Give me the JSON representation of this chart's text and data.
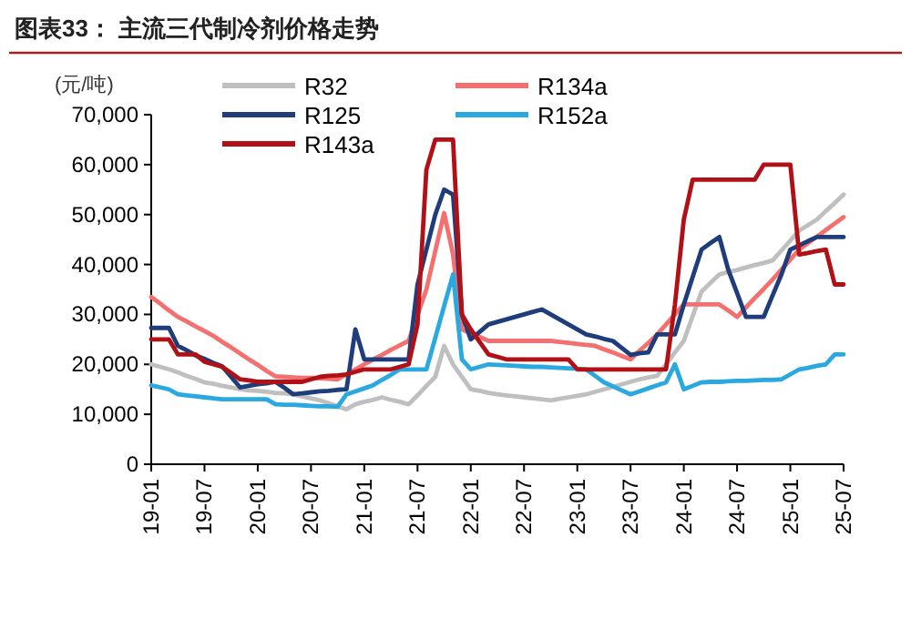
{
  "chart_data": {
    "type": "line",
    "title": "图表33：  主流三代制冷剂价格走势",
    "ylabel": "(元/吨)",
    "categories": [
      "19-01",
      null,
      null,
      null,
      null,
      null,
      "19-07",
      null,
      null,
      null,
      null,
      null,
      "20-01",
      null,
      null,
      null,
      null,
      null,
      "20-07",
      null,
      null,
      null,
      null,
      null,
      "21-01",
      null,
      null,
      null,
      null,
      null,
      "21-07",
      null,
      null,
      null,
      null,
      null,
      "22-01",
      null,
      null,
      null,
      null,
      null,
      "22-07",
      null,
      null,
      null,
      null,
      null,
      "23-01",
      null,
      null,
      null,
      null,
      null,
      "23-07",
      null,
      null,
      null,
      null,
      null,
      "24-01",
      null,
      null,
      null,
      null,
      null,
      "24-07",
      null,
      null,
      null,
      null,
      null,
      "25-01",
      null,
      null,
      null,
      null,
      null,
      "25-07"
    ],
    "ylim": [
      0,
      70000
    ],
    "yticks": [
      {
        "value": 0,
        "label": "0"
      },
      {
        "value": 10000,
        "label": "10,000"
      },
      {
        "value": 20000,
        "label": "20,000"
      },
      {
        "value": 30000,
        "label": "30,000"
      },
      {
        "value": 40000,
        "label": "40,000"
      },
      {
        "value": 50000,
        "label": "50,000"
      },
      {
        "value": 60000,
        "label": "60,000"
      },
      {
        "value": 70000,
        "label": "70,000"
      }
    ],
    "grid": false,
    "legend": "top",
    "marker": "none",
    "line_style": "solid",
    "series": [
      {
        "name": "R32",
        "color": "#bfbfbf",
        "values": [
          20000,
          19500,
          19000,
          18400,
          17700,
          17100,
          16400,
          16100,
          15700,
          15400,
          15000,
          14800,
          14700,
          14500,
          14300,
          14200,
          14000,
          13600,
          13200,
          12800,
          12200,
          11600,
          11000,
          12000,
          12500,
          12900,
          13400,
          12900,
          12500,
          12000,
          13800,
          15700,
          17500,
          23700,
          20000,
          17500,
          15000,
          14700,
          14300,
          14000,
          13800,
          13600,
          13400,
          13200,
          13000,
          12800,
          13100,
          13400,
          13700,
          14000,
          14500,
          15000,
          15500,
          16000,
          16500,
          17000,
          17400,
          17700,
          20000,
          22400,
          24700,
          29700,
          34600,
          36300,
          38000,
          38500,
          38900,
          39400,
          39900,
          40300,
          40800,
          42800,
          44800,
          46800,
          47900,
          49000,
          50700,
          52300,
          54000
        ]
      },
      {
        "name": "R134a",
        "color": "#f4706f",
        "values": [
          33500,
          32200,
          30800,
          29500,
          28600,
          27600,
          26700,
          25700,
          24500,
          23400,
          22200,
          21000,
          19900,
          18700,
          17600,
          17500,
          17400,
          17300,
          17300,
          17200,
          17100,
          17000,
          18000,
          19000,
          20000,
          21000,
          21900,
          22900,
          23800,
          24700,
          29900,
          35000,
          42700,
          50300,
          42000,
          27000,
          26200,
          25500,
          24700,
          24700,
          24700,
          24700,
          24700,
          24700,
          24700,
          24700,
          24500,
          24300,
          24100,
          23900,
          23700,
          23000,
          22400,
          21700,
          21000,
          22700,
          24300,
          26000,
          28000,
          30000,
          32000,
          32000,
          32000,
          32000,
          32000,
          30800,
          29500,
          31400,
          33300,
          35100,
          37000,
          39000,
          41000,
          43000,
          44300,
          45600,
          46900,
          48200,
          49500
        ]
      },
      {
        "name": "R125",
        "color": "#1f3d7a",
        "values": [
          27300,
          27300,
          27300,
          23700,
          22800,
          21800,
          21100,
          20300,
          19600,
          17500,
          15400,
          15700,
          16000,
          16200,
          16500,
          15300,
          14000,
          14200,
          14400,
          14600,
          14700,
          14900,
          15000,
          27000,
          21000,
          21000,
          21000,
          21000,
          21000,
          21000,
          36000,
          43000,
          50000,
          55000,
          54000,
          30000,
          25000,
          26500,
          28000,
          28500,
          29000,
          29500,
          30000,
          30500,
          31000,
          30000,
          29000,
          28000,
          27000,
          26000,
          25600,
          25100,
          24700,
          23300,
          21900,
          22200,
          22400,
          26000,
          26000,
          26000,
          32000,
          37500,
          43000,
          44300,
          45500,
          39000,
          34300,
          29500,
          29500,
          29500,
          33800,
          38000,
          43000,
          43800,
          44700,
          45500,
          45500,
          45500,
          45500
        ]
      },
      {
        "name": "R152a",
        "color": "#29a9e0",
        "values": [
          15800,
          15400,
          15000,
          14000,
          13800,
          13600,
          13400,
          13200,
          13000,
          13000,
          13000,
          13000,
          13000,
          13000,
          12000,
          11900,
          11900,
          11800,
          11700,
          11600,
          11600,
          11500,
          14000,
          14600,
          15200,
          15800,
          16900,
          17900,
          19000,
          19000,
          19000,
          19000,
          25300,
          31700,
          38000,
          21000,
          19000,
          19500,
          20000,
          19900,
          19800,
          19700,
          19600,
          19500,
          19500,
          19400,
          19300,
          19200,
          19100,
          19000,
          17700,
          16400,
          15600,
          14800,
          14000,
          14600,
          15200,
          15800,
          16400,
          20000,
          15000,
          15700,
          16400,
          16500,
          16500,
          16600,
          16700,
          16700,
          16800,
          16900,
          16900,
          17000,
          18000,
          19000,
          19300,
          19700,
          20000,
          22000,
          22000
        ]
      },
      {
        "name": "R143a",
        "color": "#b01016",
        "values": [
          25000,
          25000,
          25000,
          22000,
          22000,
          22000,
          20500,
          20000,
          19500,
          18300,
          17000,
          16800,
          16500,
          16500,
          16500,
          16500,
          16500,
          16500,
          17000,
          17500,
          17700,
          17800,
          18000,
          18500,
          19000,
          19000,
          19000,
          19000,
          19500,
          20000,
          28000,
          59000,
          65000,
          65000,
          65000,
          30000,
          27000,
          24500,
          22000,
          21500,
          21000,
          21000,
          21000,
          21000,
          21000,
          21000,
          21000,
          21000,
          19000,
          19000,
          19000,
          19000,
          19000,
          19000,
          19000,
          19000,
          19000,
          19000,
          19000,
          32000,
          49000,
          57000,
          57000,
          57000,
          57000,
          57000,
          57000,
          57000,
          57000,
          60000,
          60000,
          60000,
          60000,
          42000,
          42300,
          42700,
          43000,
          36000,
          36000
        ]
      }
    ]
  }
}
